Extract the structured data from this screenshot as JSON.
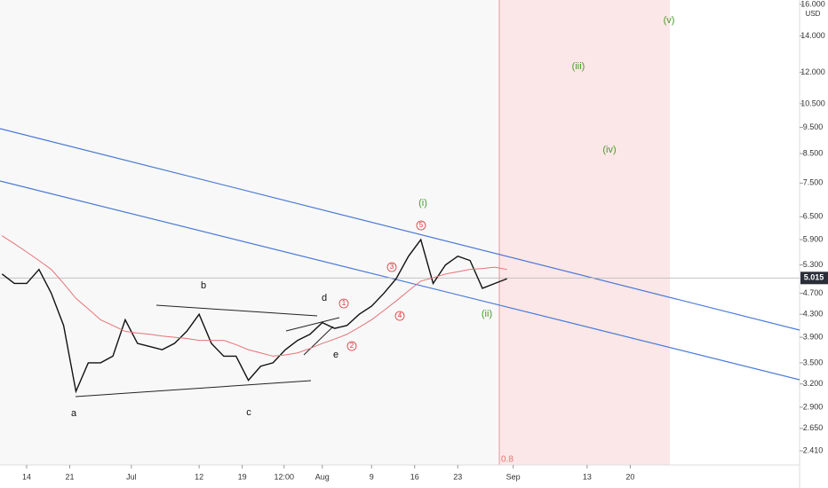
{
  "chart_data": {
    "type": "line",
    "log_scale": true,
    "x": [
      -4,
      -2,
      0,
      2,
      4,
      6,
      8,
      10,
      12,
      14,
      16,
      18,
      20,
      22,
      24,
      26,
      28,
      30,
      32,
      34,
      36,
      38,
      40,
      42,
      44,
      46,
      48,
      50,
      52,
      54,
      56,
      58,
      60,
      62,
      64,
      66,
      68,
      70,
      72,
      74,
      76,
      78
    ],
    "series": [
      {
        "color": "#111111",
        "values": [
          5.1,
          4.9,
          4.9,
          5.2,
          4.7,
          4.1,
          3.1,
          3.5,
          3.5,
          3.6,
          4.2,
          3.8,
          3.75,
          3.7,
          3.8,
          4.0,
          4.3,
          3.8,
          3.6,
          3.6,
          3.25,
          3.45,
          3.5,
          3.7,
          3.85,
          3.95,
          4.15,
          4.05,
          4.1,
          4.3,
          4.45,
          4.7,
          5.0,
          5.5,
          5.9,
          4.9,
          5.3,
          5.5,
          5.4,
          4.8,
          4.9,
          5.0
        ]
      },
      {
        "color": "#e57373",
        "values": [
          6.0,
          5.8,
          5.6,
          5.4,
          5.2,
          4.9,
          4.6,
          4.4,
          4.2,
          4.1,
          4.0,
          3.97,
          3.95,
          3.92,
          3.9,
          3.88,
          3.85,
          3.85,
          3.85,
          3.78,
          3.7,
          3.65,
          3.6,
          3.62,
          3.65,
          3.72,
          3.8,
          3.87,
          3.95,
          4.07,
          4.2,
          4.37,
          4.55,
          4.75,
          4.95,
          5.02,
          5.1,
          5.15,
          5.2,
          5.22,
          5.25,
          5.2
        ]
      }
    ],
    "xlim": [
      -4.33,
      125.5
    ],
    "xticks": [
      {
        "value": 0,
        "label": "14"
      },
      {
        "value": 7,
        "label": "21"
      },
      {
        "value": 17,
        "label": "Jul"
      },
      {
        "value": 28,
        "label": "12"
      },
      {
        "value": 35,
        "label": "19"
      },
      {
        "value": 41.8,
        "label": "12:00"
      },
      {
        "value": 48,
        "label": "Aug"
      },
      {
        "value": 56,
        "label": "9"
      },
      {
        "value": 63,
        "label": "16"
      },
      {
        "value": 70,
        "label": "23"
      },
      {
        "value": 79,
        "label": "Sep"
      },
      {
        "value": 91,
        "label": "13"
      },
      {
        "value": 98,
        "label": "20"
      }
    ],
    "ylim": [
      2.27,
      16.3
    ],
    "yticks": [
      {
        "value": 2.41,
        "label": "2.410"
      },
      {
        "value": 2.65,
        "label": "2.650"
      },
      {
        "value": 2.9,
        "label": "2.900"
      },
      {
        "value": 3.2,
        "label": "3.200"
      },
      {
        "value": 3.5,
        "label": "3.500"
      },
      {
        "value": 3.9,
        "label": "3.900"
      },
      {
        "value": 4.3,
        "label": "4.300"
      },
      {
        "value": 4.7,
        "label": "4.700"
      },
      {
        "value": 5.3,
        "label": "5.300"
      },
      {
        "value": 5.9,
        "label": "5.900"
      },
      {
        "value": 6.5,
        "label": "6.500"
      },
      {
        "value": 7.5,
        "label": "7.500"
      },
      {
        "value": 8.5,
        "label": "8.500"
      },
      {
        "value": 9.5,
        "label": "9.500"
      },
      {
        "value": 10.5,
        "label": "10.500"
      },
      {
        "value": 12,
        "label": "12.000"
      },
      {
        "value": 14,
        "label": "14.000"
      },
      {
        "value": 16,
        "label": "16.000"
      }
    ],
    "last_price": 5.015,
    "currency": "USD",
    "annotations": [
      "a",
      "b",
      "c",
      "d",
      "e",
      "(i)",
      "(ii)",
      "(iii)",
      "(iv)",
      "(v)",
      "1",
      "2",
      "3",
      "4",
      "5",
      "0.8"
    ]
  }
}
